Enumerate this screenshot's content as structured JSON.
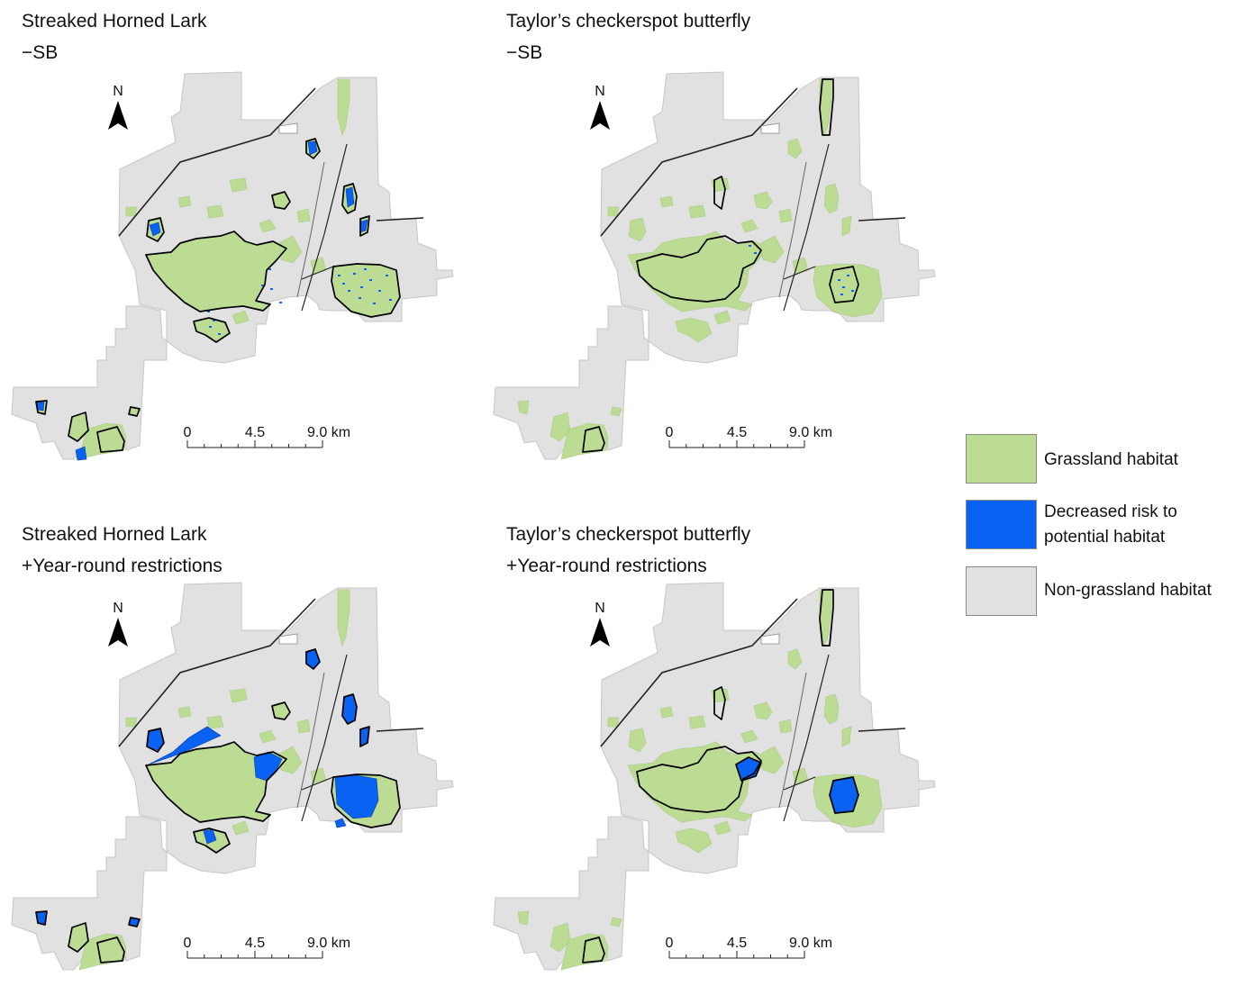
{
  "panels": [
    {
      "title_line1": "Streaked Horned Lark",
      "title_line2": "−SB",
      "north_label": "N",
      "scale_labels": [
        "0",
        "4.5",
        "9.0 km"
      ]
    },
    {
      "title_line1": "Taylor’s checkerspot butterfly",
      "title_line2": "−SB",
      "north_label": "N",
      "scale_labels": [
        "0",
        "4.5",
        "9.0 km"
      ]
    },
    {
      "title_line1": "Streaked Horned Lark",
      "title_line2": "+Year-round restrictions",
      "north_label": "N",
      "scale_labels": [
        "0",
        "4.5",
        "9.0 km"
      ]
    },
    {
      "title_line1": "Taylor’s checkerspot butterfly",
      "title_line2": "+Year-round restrictions",
      "north_label": "N",
      "scale_labels": [
        "0",
        "4.5",
        "9.0 km"
      ]
    }
  ],
  "legend": {
    "items": [
      {
        "label_lines": [
          "Grassland habitat"
        ],
        "color": "#bcdc94"
      },
      {
        "label_lines": [
          "Decreased risk to",
          "potential habitat"
        ],
        "color": "#0a62f3"
      },
      {
        "label_lines": [
          "Non-grassland habitat"
        ],
        "color": "#e1e1e1"
      }
    ]
  },
  "colors": {
    "grassland": "#bcdc94",
    "decreased_risk": "#0a62f3",
    "non_grassland": "#e1e1e1",
    "outline": "#000000"
  }
}
